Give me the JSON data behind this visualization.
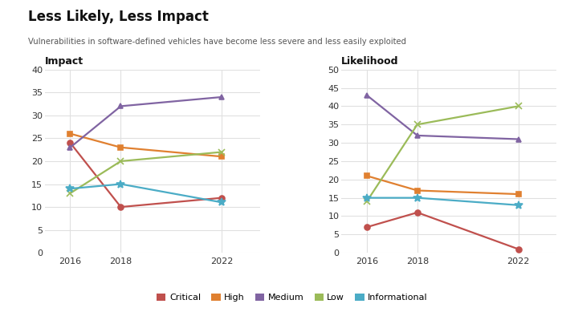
{
  "title": "Less Likely, Less Impact",
  "subtitle": "Vulnerabilities in software-defined vehicles have become less severe and less easily exploited",
  "years": [
    2016,
    2018,
    2022
  ],
  "impact": {
    "Critical": [
      24,
      10,
      12
    ],
    "High": [
      26,
      23,
      21
    ],
    "Medium": [
      23,
      32,
      34
    ],
    "Low": [
      13,
      20,
      22
    ],
    "Informational": [
      14,
      15,
      11
    ]
  },
  "likelihood": {
    "Critical": [
      7,
      11,
      1
    ],
    "High": [
      21,
      17,
      16
    ],
    "Medium": [
      43,
      32,
      31
    ],
    "Low": [
      14,
      35,
      40
    ],
    "Informational": [
      15,
      15,
      13
    ]
  },
  "colors": {
    "Critical": "#c0504d",
    "High": "#e08030",
    "Medium": "#8064a2",
    "Low": "#9bbb59",
    "Informational": "#4bacc6"
  },
  "markers": {
    "Critical": "o",
    "High": "s",
    "Medium": "^",
    "Low": "x",
    "Informational": "*"
  },
  "impact_ylim": [
    0,
    40
  ],
  "likelihood_ylim": [
    0,
    50
  ],
  "impact_yticks": [
    0,
    5,
    10,
    15,
    20,
    25,
    30,
    35,
    40
  ],
  "likelihood_yticks": [
    0,
    5,
    10,
    15,
    20,
    25,
    30,
    35,
    40,
    45,
    50
  ],
  "background_color": "#ffffff",
  "grid_color": "#e0e0e0"
}
